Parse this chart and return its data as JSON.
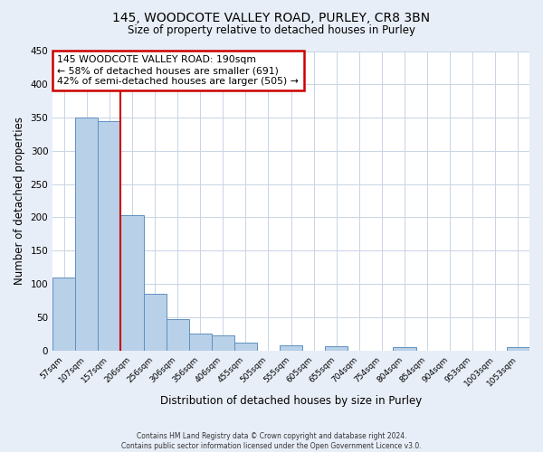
{
  "title1": "145, WOODCOTE VALLEY ROAD, PURLEY, CR8 3BN",
  "title2": "Size of property relative to detached houses in Purley",
  "xlabel": "Distribution of detached houses by size in Purley",
  "ylabel": "Number of detached properties",
  "bar_labels": [
    "57sqm",
    "107sqm",
    "157sqm",
    "206sqm",
    "256sqm",
    "306sqm",
    "356sqm",
    "406sqm",
    "455sqm",
    "505sqm",
    "555sqm",
    "605sqm",
    "655sqm",
    "704sqm",
    "754sqm",
    "804sqm",
    "854sqm",
    "904sqm",
    "953sqm",
    "1003sqm",
    "1053sqm"
  ],
  "bar_heights": [
    110,
    350,
    345,
    203,
    85,
    47,
    25,
    22,
    12,
    0,
    8,
    0,
    7,
    0,
    0,
    5,
    0,
    0,
    0,
    0,
    5
  ],
  "bar_color": "#b8d0e8",
  "bar_edge_color": "#6090c0",
  "bar_width": 1.0,
  "ylim": [
    0,
    450
  ],
  "yticks": [
    0,
    50,
    100,
    150,
    200,
    250,
    300,
    350,
    400,
    450
  ],
  "vline_color": "#cc0000",
  "annotation_line1": "145 WOODCOTE VALLEY ROAD: 190sqm",
  "annotation_line2": "← 58% of detached houses are smaller (691)",
  "annotation_line3": "42% of semi-detached houses are larger (505) →",
  "annotation_box_edge": "#cc0000",
  "footer1": "Contains HM Land Registry data © Crown copyright and database right 2024.",
  "footer2": "Contains public sector information licensed under the Open Government Licence v3.0.",
  "bg_color": "#e8eef8",
  "plot_bg_color": "#ffffff"
}
